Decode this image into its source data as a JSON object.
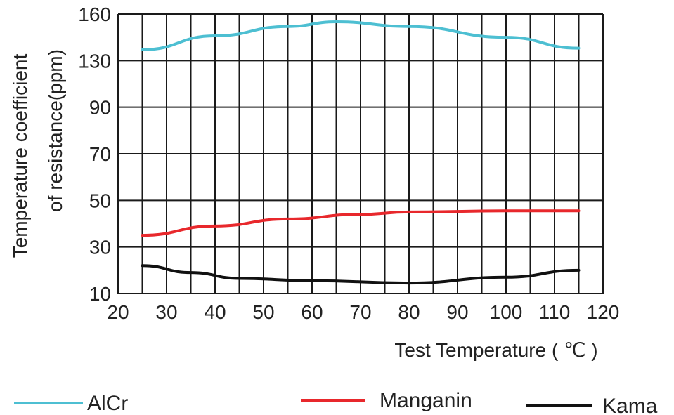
{
  "chart_data": {
    "type": "line",
    "title": "",
    "xlabel": "Test Temperature ( ℃ )",
    "ylabel_lines": [
      "Temperature coefficient",
      "of resistance(ppm)"
    ],
    "xlim": [
      20,
      120
    ],
    "ylim": [
      10,
      160
    ],
    "x_ticks": [
      20,
      30,
      40,
      50,
      60,
      70,
      80,
      90,
      100,
      110,
      120
    ],
    "y_ticks": [
      10,
      30,
      50,
      70,
      90,
      130,
      160
    ],
    "grid": true,
    "legend_position": "bottom",
    "series": [
      {
        "name": "AlCr",
        "color": "#4dbfd2",
        "x": [
          25,
          40,
          55,
          65,
          80,
          100,
          115
        ],
        "y": [
          137,
          146,
          152,
          155,
          152,
          145,
          138
        ]
      },
      {
        "name": "Manganin",
        "color": "#e8282c",
        "x": [
          25,
          40,
          55,
          70,
          80,
          100,
          115
        ],
        "y": [
          35,
          39,
          42,
          44,
          45,
          45.5,
          45.5
        ]
      },
      {
        "name": "Kama",
        "color": "#111111",
        "x": [
          25,
          35,
          45,
          60,
          80,
          100,
          115
        ],
        "y": [
          22,
          19,
          16.5,
          15.5,
          14.5,
          17,
          20
        ]
      }
    ]
  }
}
